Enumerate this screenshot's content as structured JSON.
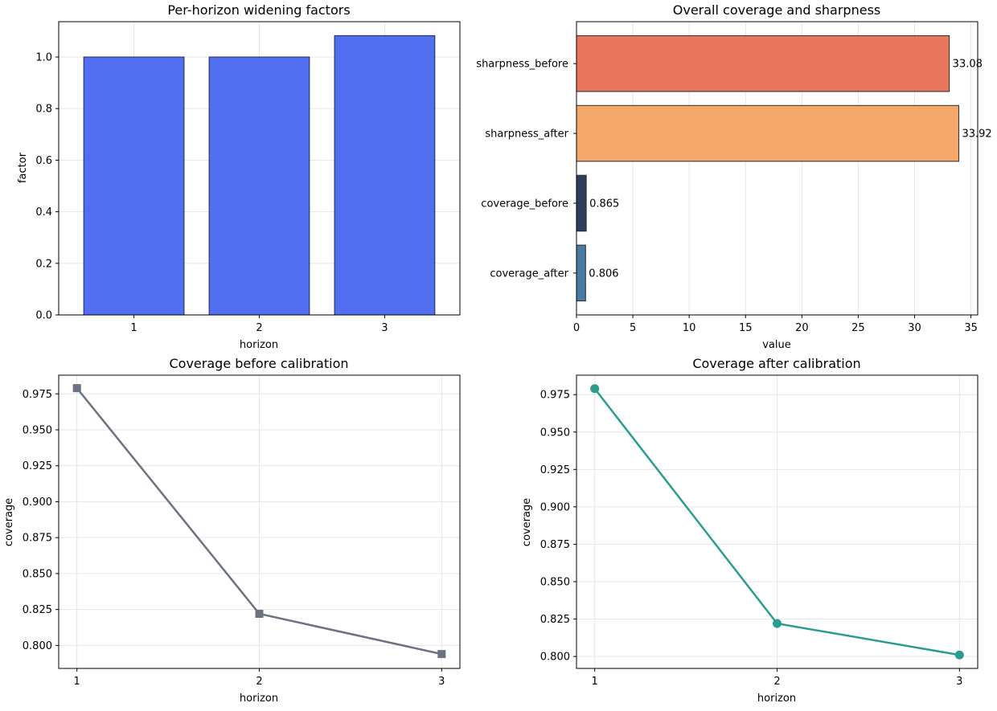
{
  "chart_data": [
    {
      "id": "factors",
      "type": "bar",
      "title": "Per-horizon widening factors",
      "xlabel": "horizon",
      "ylabel": "factor",
      "categories": [
        "1",
        "2",
        "3"
      ],
      "values": [
        1.0,
        1.0,
        1.083
      ],
      "ylim": [
        0,
        1.137
      ],
      "yticks": [
        0.0,
        0.2,
        0.4,
        0.6,
        0.8,
        1.0
      ],
      "grid": true,
      "color": "#3a5bef"
    },
    {
      "id": "overall",
      "type": "bar",
      "orientation": "horizontal",
      "title": "Overall coverage and sharpness",
      "xlabel": "value",
      "ylabel": "",
      "categories": [
        "sharpness_before",
        "sharpness_after",
        "coverage_before",
        "coverage_after"
      ],
      "values": [
        33.08,
        33.92,
        0.865,
        0.806
      ],
      "value_labels": [
        "33.08",
        "33.92",
        "0.865",
        "0.806"
      ],
      "colors": [
        "#e8765d",
        "#f4a86a",
        "#2c3e5b",
        "#4a7ba0"
      ],
      "xlim": [
        0,
        35.6
      ],
      "xticks": [
        0,
        5,
        10,
        15,
        20,
        25,
        30,
        35
      ],
      "grid": true
    },
    {
      "id": "cov_before",
      "type": "line",
      "title": "Coverage before calibration",
      "xlabel": "horizon",
      "ylabel": "coverage",
      "x": [
        1,
        2,
        3
      ],
      "y": [
        0.979,
        0.822,
        0.794
      ],
      "xlim": [
        0.9,
        3.1
      ],
      "ylim": [
        0.784,
        0.988
      ],
      "xticks": [
        1,
        2,
        3
      ],
      "yticks": [
        0.8,
        0.825,
        0.85,
        0.875,
        0.9,
        0.925,
        0.95,
        0.975
      ],
      "marker": "square",
      "color": "#6b7280",
      "grid": true
    },
    {
      "id": "cov_after",
      "type": "line",
      "title": "Coverage after calibration",
      "xlabel": "horizon",
      "ylabel": "coverage",
      "x": [
        1,
        2,
        3
      ],
      "y": [
        0.979,
        0.822,
        0.801
      ],
      "xlim": [
        0.9,
        3.1
      ],
      "ylim": [
        0.792,
        0.988
      ],
      "xticks": [
        1,
        2,
        3
      ],
      "yticks": [
        0.8,
        0.825,
        0.85,
        0.875,
        0.9,
        0.925,
        0.95,
        0.975
      ],
      "marker": "circle",
      "color": "#2a9d8f",
      "grid": true
    }
  ]
}
